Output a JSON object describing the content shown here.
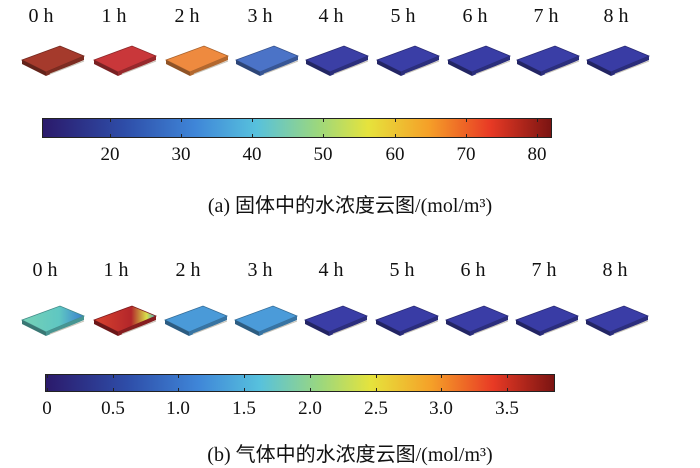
{
  "panel_a": {
    "times": [
      "0 h",
      "1 h",
      "2 h",
      "3 h",
      "4 h",
      "5 h",
      "6 h",
      "7 h",
      "8 h"
    ],
    "plate_colors": [
      "#a53a2c",
      "#c9373a",
      "#ee8a3f",
      "#4b73c7",
      "#3b3fa5",
      "#3a3ea6",
      "#393da5",
      "#3a3ea6",
      "#393ca4"
    ],
    "colorbar_ticks": [
      "20",
      "30",
      "40",
      "50",
      "60",
      "70",
      "80"
    ],
    "caption": "(a) 固体中的水浓度云图/(mol/m³)"
  },
  "panel_b": {
    "times": [
      "0 h",
      "1 h",
      "2 h",
      "3 h",
      "4 h",
      "5 h",
      "6 h",
      "7 h",
      "8 h"
    ],
    "plate_colors": [
      "#5fc7c2",
      "#b3262a",
      "#4a9ad8",
      "#4b9bd9",
      "#3a3da6",
      "#393ca5",
      "#3a3da6",
      "#393ca5",
      "#3a3da6"
    ],
    "colorbar_ticks": [
      "0",
      "0.5",
      "1.0",
      "1.5",
      "2.0",
      "2.5",
      "3.0",
      "3.5"
    ],
    "caption": "(b) 气体中的水浓度云图/(mol/m³)"
  }
}
